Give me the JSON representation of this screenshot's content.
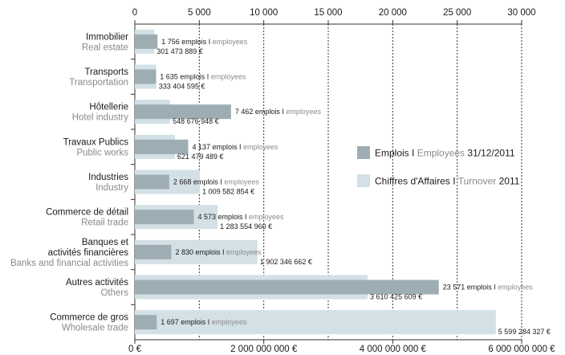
{
  "chart_data": {
    "type": "bar",
    "orientation": "horizontal",
    "axes": {
      "top": {
        "unit": "employees",
        "min": 0,
        "max": 30000,
        "ticks": [
          0,
          5000,
          10000,
          15000,
          20000,
          25000,
          30000
        ],
        "tick_labels": [
          "0",
          "5 000",
          "10 000",
          "15 000",
          "20 000",
          "25 000",
          "30 000"
        ]
      },
      "bottom": {
        "unit": "€",
        "min": 0,
        "max": 6000000000,
        "ticks": [
          0,
          2000000000,
          4000000000,
          6000000000
        ],
        "tick_labels": [
          "0 €",
          "2 000 000 000 €",
          "4 000 000 000 €",
          "6 000 000 000 €"
        ]
      }
    },
    "grid": true,
    "legend_position": "right",
    "legend": [
      {
        "series": "employees",
        "text_fr": "Emplois I ",
        "text_en": "Employees",
        "suffix": " 31/12/2011",
        "color": "#9eadb4"
      },
      {
        "series": "turnover",
        "text_fr": "Chiffres d'Affaires I ",
        "text_en": "Turnover",
        "suffix": " 2011",
        "color": "#d3e0e6"
      }
    ],
    "label_texts": {
      "emplois": "emplois I",
      "employees": "employees"
    },
    "categories": [
      {
        "fr": "Immobilier",
        "en": "Real estate",
        "employees": 1756,
        "employees_label": "1 756",
        "turnover": 301473889,
        "turnover_label": "301 473 889 €"
      },
      {
        "fr": "Transports",
        "en": "Transportation",
        "employees": 1635,
        "employees_label": "1 635",
        "turnover": 333404595,
        "turnover_label": "333 404 595 €"
      },
      {
        "fr": "Hôtellerie",
        "en": "Hotel industry",
        "employees": 7462,
        "employees_label": "7 462",
        "turnover": 548676948,
        "turnover_label": "548 676 948 €"
      },
      {
        "fr": "Travaux Publics",
        "en": "Public works",
        "employees": 4137,
        "employees_label": "4 137",
        "turnover": 621479489,
        "turnover_label": "621 479 489 €"
      },
      {
        "fr": "Industries",
        "en": "Industry",
        "employees": 2668,
        "employees_label": "2 668",
        "turnover": 1009582854,
        "turnover_label": "1 009 582 854 €"
      },
      {
        "fr": "Commerce de détail",
        "en": "Retail trade",
        "employees": 4573,
        "employees_label": "4 573",
        "turnover": 1283554960,
        "turnover_label": "1 283 554 960 €"
      },
      {
        "fr": "Banques et\nactivités financières",
        "en": "Banks and financial activities",
        "employees": 2830,
        "employees_label": "2 830",
        "turnover": 1902346662,
        "turnover_label": "1 902 346 662 €"
      },
      {
        "fr": "Autres activités",
        "en": "Others",
        "employees": 23571,
        "employees_label": "23 571",
        "turnover": 3610425609,
        "turnover_label": "3 610 425 609 €"
      },
      {
        "fr": "Commerce de gros",
        "en": "Wholesale trade",
        "employees": 1697,
        "employees_label": "1 697",
        "turnover": 5599284327,
        "turnover_label": "5 599 284 327 €"
      }
    ]
  }
}
